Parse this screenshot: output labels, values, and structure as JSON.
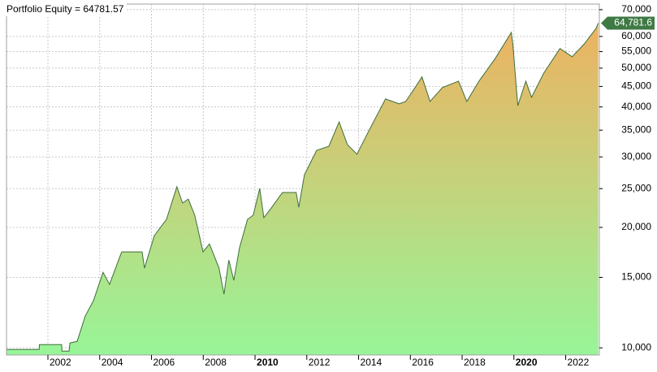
{
  "chart_data": {
    "type": "area",
    "title": "Portfolio Equity = 64781.57",
    "log_scale": true,
    "grid": true,
    "line_color": "#3c6e3c",
    "fill_top": "#f2ae5e",
    "fill_bottom": "#98f598",
    "tag_color": "#3f7a45",
    "value_label": "64,781.6",
    "xlim": [
      2000.4,
      2023.3
    ],
    "xticks": [
      2002,
      2004,
      2006,
      2008,
      2010,
      2012,
      2014,
      2016,
      2018,
      2020,
      2022
    ],
    "bold_xticks": [
      2010,
      2020
    ],
    "ylim": [
      9600,
      72300
    ],
    "yticks": [
      {
        "value": 10000,
        "label": "10,000"
      },
      {
        "value": 15000,
        "label": "15,000"
      },
      {
        "value": 20000,
        "label": "20,000"
      },
      {
        "value": 25000,
        "label": "25,000"
      },
      {
        "value": 30000,
        "label": "30,000"
      },
      {
        "value": 35000,
        "label": "35,000"
      },
      {
        "value": 40000,
        "label": "40,000"
      },
      {
        "value": 45000,
        "label": "45,000"
      },
      {
        "value": 50000,
        "label": "50,000"
      },
      {
        "value": 55000,
        "label": "55,000"
      },
      {
        "value": 60000,
        "label": "60,000"
      },
      {
        "value": 70000,
        "label": "70,000"
      }
    ],
    "x": [
      2000.4,
      2001.66,
      2001.67,
      2002.53,
      2002.54,
      2002.82,
      2002.85,
      2003.13,
      2003.44,
      2003.76,
      2004.13,
      2004.38,
      2004.79,
      2004.85,
      2005.64,
      2005.73,
      2006.11,
      2006.58,
      2006.98,
      2007.2,
      2007.42,
      2007.67,
      2007.99,
      2008.24,
      2008.61,
      2008.8,
      2008.99,
      2009.18,
      2009.4,
      2009.71,
      2009.93,
      2010.18,
      2010.34,
      2010.65,
      2011.06,
      2011.59,
      2011.69,
      2011.91,
      2012.38,
      2012.85,
      2013.25,
      2013.57,
      2013.94,
      2014.41,
      2015.04,
      2015.57,
      2015.82,
      2016.14,
      2016.45,
      2016.76,
      2017.24,
      2017.86,
      2018.18,
      2018.65,
      2019.28,
      2019.9,
      2019.96,
      2020.15,
      2020.46,
      2020.68,
      2021.15,
      2021.78,
      2022.25,
      2022.71,
      2023.17,
      2023.26
    ],
    "values": [
      9907,
      9907,
      10189,
      10189,
      9815,
      9815,
      10285,
      10381,
      12003,
      13117,
      15446,
      14401,
      16964,
      17371,
      17371,
      15818,
      19061,
      20956,
      25263,
      23004,
      23544,
      21450,
      17371,
      18189,
      15818,
      13618,
      16570,
      14744,
      17786,
      20956,
      21450,
      25028,
      21148,
      22458,
      24450,
      24450,
      22458,
      27094,
      31165,
      31900,
      36692,
      32200,
      30480,
      35000,
      41880,
      40710,
      41290,
      44300,
      47540,
      41290,
      44720,
      46390,
      41290,
      46390,
      52900,
      61400,
      57400,
      40300,
      46390,
      42270,
      48570,
      56000,
      53400,
      57400,
      62800,
      64781.57
    ]
  }
}
